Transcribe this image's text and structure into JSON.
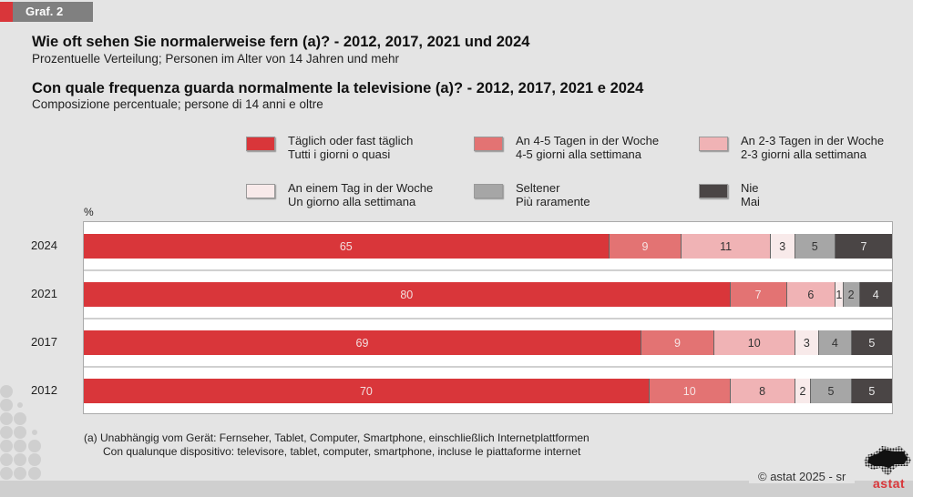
{
  "header": {
    "tag": "Graf. 2",
    "title_de": "Wie oft sehen Sie normalerweise fern (a)? - 2012, 2017, 2021 und 2024",
    "subtitle_de": "Prozentuelle Verteilung; Personen im Alter von 14 Jahren und mehr",
    "title_it": "Con quale frequenza guarda normalmente la televisione (a)? - 2012, 2017, 2021 e 2024",
    "subtitle_it": "Composizione percentuale; persone di 14 anni e oltre"
  },
  "axis": {
    "unit_label": "%"
  },
  "footnote": {
    "line1": "(a)  Unabhängig vom Gerät: Fernseher, Tablet, Computer, Smartphone, einschließlich Internetplattformen",
    "line2": "Con qualunque dispositivo: televisore, tablet, computer, smartphone, incluse le piattaforme internet"
  },
  "footer": {
    "copyright": "©  astat 2025 - sr",
    "logo_text": "astat"
  },
  "colors": {
    "brand_red": "#d9363a",
    "tag_gray": "#808080"
  },
  "chart_data": {
    "type": "bar",
    "orientation": "horizontal",
    "stacked": true,
    "title": "Wie oft sehen Sie normalerweise fern (a)? - 2012, 2017, 2021 und 2024 / Con quale frequenza guarda normalmente la televisione (a)? - 2012, 2017, 2021 e 2024",
    "xlabel": "%",
    "ylabel": "",
    "xlim": [
      0,
      100
    ],
    "grid": false,
    "legend_position": "top",
    "categories": [
      "2024",
      "2021",
      "2017",
      "2012"
    ],
    "series": [
      {
        "name_de": "Täglich oder fast täglich",
        "name_it": "Tutti i giorni o quasi",
        "color": "#d9363a",
        "text_color": "#f3dede",
        "values": [
          65,
          80,
          69,
          70
        ]
      },
      {
        "name_de": "An 4-5 Tagen in der Woche",
        "name_it": "4-5 giorni alla settimana",
        "color": "#e37373",
        "text_color": "#f6e2e2",
        "values": [
          9,
          7,
          9,
          10
        ]
      },
      {
        "name_de": "An 2-3 Tagen  in der Woche",
        "name_it": "2-3 giorni alla settimana",
        "color": "#f0b3b5",
        "text_color": "#333333",
        "values": [
          11,
          6,
          10,
          8
        ]
      },
      {
        "name_de": "An einem Tag in der Woche",
        "name_it": "Un giorno alla settimana",
        "color": "#f8eaea",
        "text_color": "#333333",
        "values": [
          3,
          1,
          3,
          2
        ]
      },
      {
        "name_de": "Seltener",
        "name_it": "Più raramente",
        "color": "#a6a6a6",
        "text_color": "#333333",
        "values": [
          5,
          2,
          4,
          5
        ]
      },
      {
        "name_de": "Nie",
        "name_it": "Mai",
        "color": "#4a4545",
        "text_color": "#e8e8e8",
        "values": [
          7,
          4,
          5,
          5
        ]
      }
    ]
  }
}
